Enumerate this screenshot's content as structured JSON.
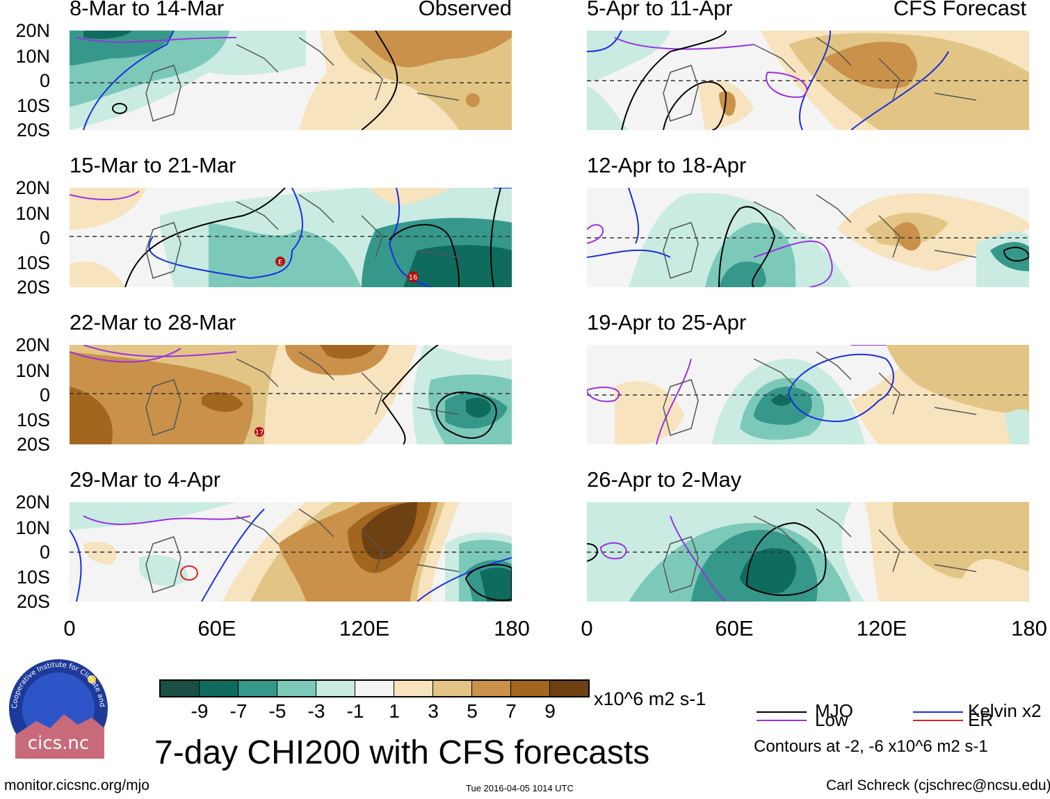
{
  "observed_label": "Observed",
  "forecast_label": "CFS Forecast",
  "panels_left": [
    {
      "title": "8-Mar to 14-Mar"
    },
    {
      "title": "15-Mar to 21-Mar"
    },
    {
      "title": "22-Mar to 28-Mar"
    },
    {
      "title": "29-Mar to 4-Apr"
    }
  ],
  "panels_right": [
    {
      "title": "5-Apr to 11-Apr"
    },
    {
      "title": "12-Apr to 18-Apr"
    },
    {
      "title": "19-Apr to 25-Apr"
    },
    {
      "title": "26-Apr to 2-May"
    }
  ],
  "lat_labels": [
    "20N",
    "10N",
    "0",
    "10S",
    "20S"
  ],
  "lon_labels": [
    "0",
    "60E",
    "120E",
    "180"
  ],
  "storm_labels": {
    "s1": "E",
    "s2": "16",
    "s3": "17"
  },
  "colorbar": {
    "colors": [
      "#1a4f45",
      "#0f6b5e",
      "#35988a",
      "#7cc9b9",
      "#c9ebe2",
      "#f4f4f4",
      "#f7e3bd",
      "#e2c584",
      "#c9914a",
      "#a2661e",
      "#6e4112"
    ],
    "ticks": [
      "-9",
      "-7",
      "-5",
      "-3",
      "-1",
      "1",
      "3",
      "5",
      "7",
      "9"
    ],
    "units": "x10^6 m2 s-1"
  },
  "title": "7-day CHI200 with CFS forecasts",
  "legend": {
    "mjo": {
      "label": "MJO",
      "color": "#000000"
    },
    "kelvin": {
      "label": "Kelvin x2",
      "color": "#1a2ee0"
    },
    "low": {
      "label": "Low",
      "color": "#9b30e0"
    },
    "er": {
      "label": "ER",
      "color": "#e02020"
    },
    "note": "Contours at -2, -6 x10^6 m2 s-1"
  },
  "logo_text": "cics.nc",
  "logo_ring": "Cooperative Institute for Climate and Satellites",
  "footer": {
    "url": "monitor.cicsnc.org/mjo",
    "timestamp": "Tue 2016-04-05 1014 UTC",
    "author": "Carl Schreck (cjschrec@ncsu.edu)"
  }
}
